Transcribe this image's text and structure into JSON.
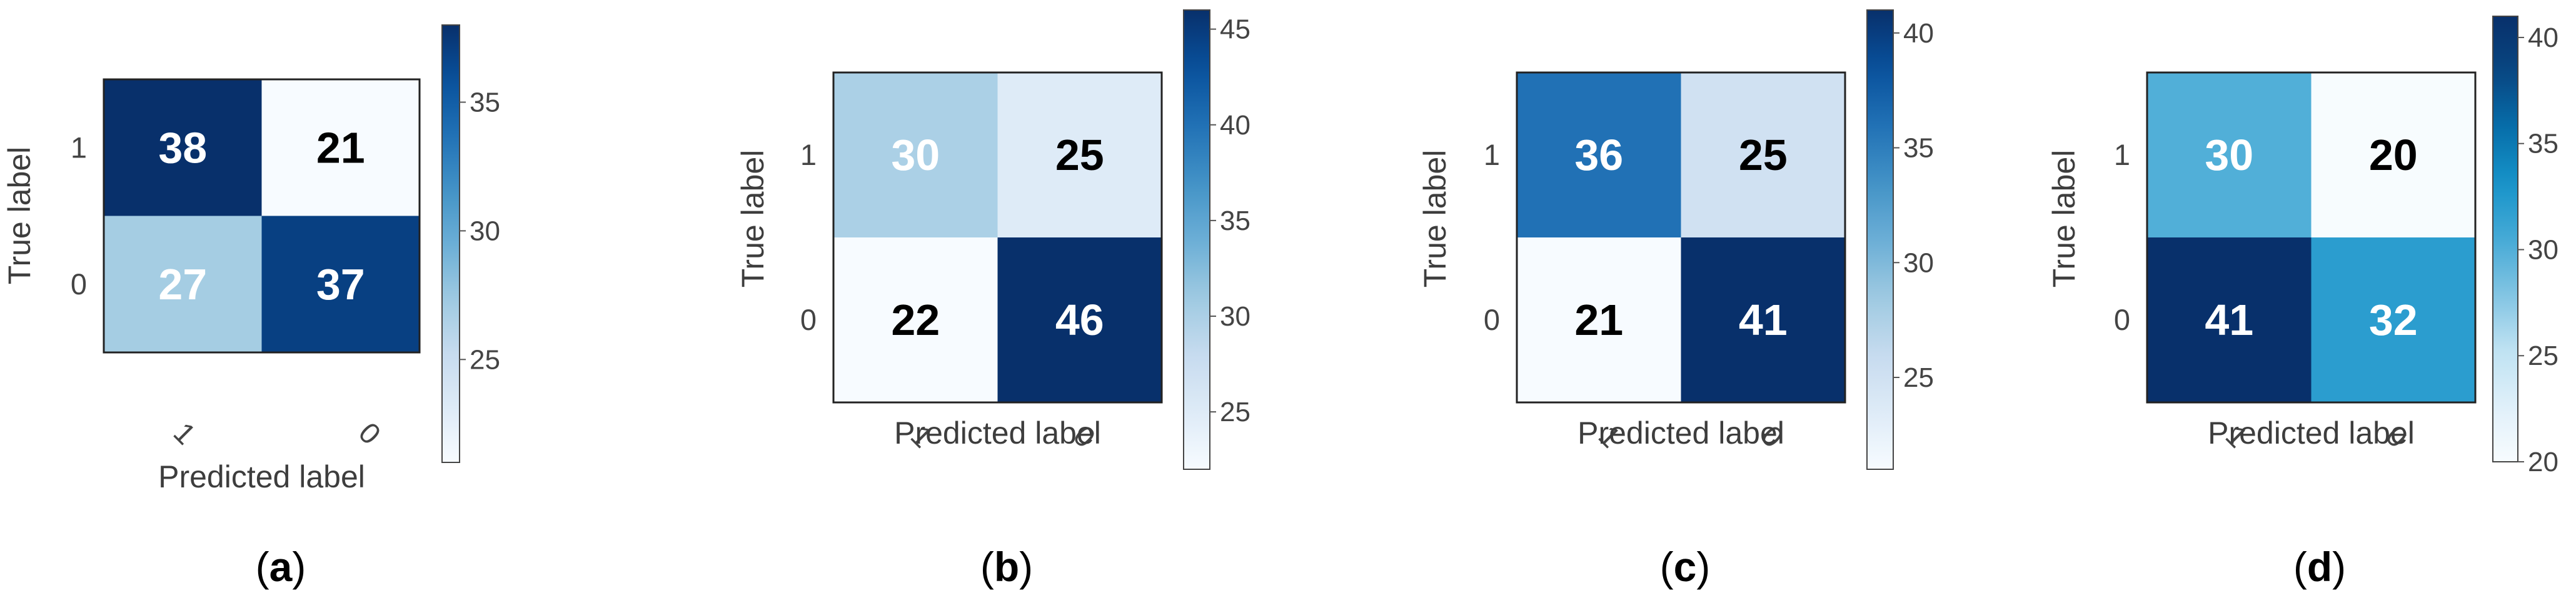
{
  "chart_data": [
    {
      "type": "heatmap",
      "subfigure_label": "a",
      "xlabel": "Predicted label",
      "ylabel": "True label",
      "x_categories": [
        "1",
        "0"
      ],
      "y_categories": [
        "1",
        "0"
      ],
      "values": [
        [
          38,
          21
        ],
        [
          27,
          37
        ]
      ],
      "colorbar": {
        "range": [
          21,
          38
        ],
        "ticks": [
          25,
          30,
          35
        ]
      },
      "colormap": "Blues"
    },
    {
      "type": "heatmap",
      "subfigure_label": "b",
      "xlabel": "Predicted label",
      "ylabel": "True label",
      "x_categories": [
        "1",
        "0"
      ],
      "y_categories": [
        "1",
        "0"
      ],
      "values": [
        [
          30,
          25
        ],
        [
          22,
          46
        ]
      ],
      "colorbar": {
        "range": [
          22,
          46
        ],
        "ticks": [
          25,
          30,
          35,
          40,
          45
        ]
      },
      "colormap": "Blues"
    },
    {
      "type": "heatmap",
      "subfigure_label": "c",
      "xlabel": "Predicted label",
      "ylabel": "True label",
      "x_categories": [
        "1",
        "0"
      ],
      "y_categories": [
        "1",
        "0"
      ],
      "values": [
        [
          36,
          25
        ],
        [
          21,
          41
        ]
      ],
      "colorbar": {
        "range": [
          21,
          41
        ],
        "ticks": [
          25,
          30,
          35,
          40
        ]
      },
      "colormap": "Blues"
    },
    {
      "type": "heatmap",
      "subfigure_label": "d",
      "xlabel": "Predicted label",
      "ylabel": "True label",
      "x_categories": [
        "1",
        "0"
      ],
      "y_categories": [
        "1",
        "0"
      ],
      "values": [
        [
          30,
          20
        ],
        [
          41,
          32
        ]
      ],
      "colorbar": {
        "range": [
          20,
          41
        ],
        "ticks": [
          20,
          25,
          30,
          35,
          40
        ]
      },
      "colormap": "GnBu-like"
    }
  ],
  "captions": [
    "(a)",
    "(b)",
    "(c)",
    "(d)"
  ]
}
